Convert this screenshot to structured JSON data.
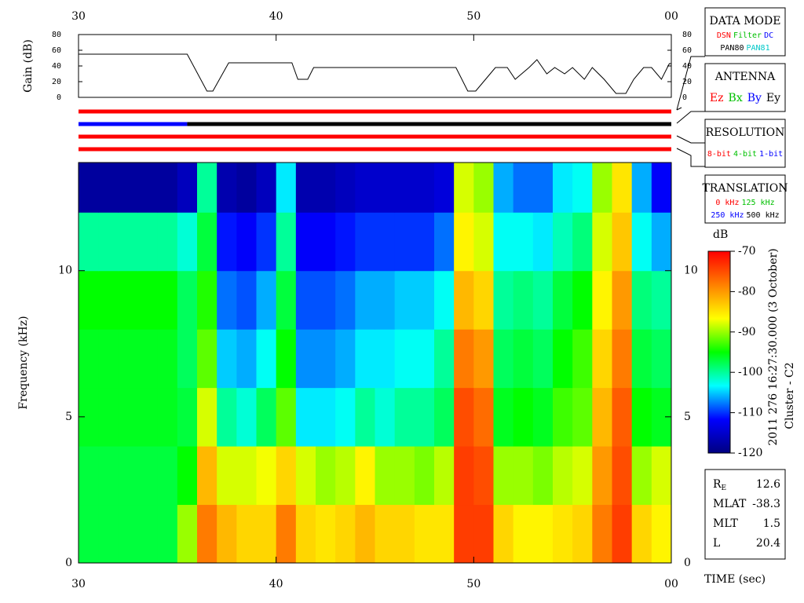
{
  "chart_data": {
    "type": "heatmap",
    "xlabel": "TIME (sec)",
    "ylabel": "Frequency (kHz)",
    "title_lines": [
      "2011 276 16:27:30.000 (3 October)",
      "Cluster - C2"
    ],
    "xlim": [
      30,
      60
    ],
    "xticks": [
      30,
      40,
      50,
      {
        "value": 60,
        "label": "00"
      }
    ],
    "ylim": [
      0,
      13.7
    ],
    "yticks": [
      0,
      5,
      10
    ],
    "x_edges": [
      30,
      31,
      32,
      33,
      34,
      35,
      36,
      37,
      38,
      39,
      40,
      41,
      42,
      43,
      44,
      45,
      46,
      47,
      48,
      49,
      50,
      51,
      52,
      53,
      54,
      55,
      56,
      57,
      58,
      59,
      60
    ],
    "y_edges": [
      0,
      2,
      4,
      6,
      8,
      10,
      12,
      13.7
    ],
    "z": [
      [
        -97,
        -97,
        -97,
        -97,
        -97,
        -90,
        -78,
        -82,
        -84,
        -84,
        -78,
        -84,
        -85,
        -84,
        -82,
        -84,
        -84,
        -85,
        -85,
        -74,
        -74,
        -84,
        -86,
        -86,
        -85,
        -84,
        -78,
        -74,
        -84,
        -86
      ],
      [
        -97,
        -97,
        -97,
        -97,
        -97,
        -95,
        -82,
        -88,
        -88,
        -87,
        -84,
        -88,
        -90,
        -89,
        -86,
        -90,
        -90,
        -91,
        -89,
        -74,
        -75,
        -90,
        -90,
        -91,
        -89,
        -88,
        -80,
        -75,
        -90,
        -88
      ],
      [
        -96,
        -96,
        -96,
        -96,
        -96,
        -97,
        -88,
        -100,
        -102,
        -98,
        -92,
        -104,
        -104,
        -103,
        -100,
        -102,
        -100,
        -100,
        -98,
        -75,
        -77,
        -96,
        -95,
        -96,
        -93,
        -92,
        -82,
        -76,
        -95,
        -96
      ],
      [
        -96,
        -96,
        -96,
        -96,
        -96,
        -98,
        -92,
        -105,
        -106,
        -103,
        -95,
        -107,
        -107,
        -106,
        -104,
        -104,
        -103,
        -103,
        -100,
        -78,
        -80,
        -98,
        -97,
        -98,
        -95,
        -93,
        -84,
        -78,
        -97,
        -98
      ],
      [
        -95,
        -95,
        -95,
        -95,
        -95,
        -98,
        -94,
        -108,
        -109,
        -106,
        -97,
        -109,
        -109,
        -108,
        -106,
        -106,
        -105,
        -105,
        -103,
        -82,
        -84,
        -100,
        -99,
        -100,
        -97,
        -95,
        -86,
        -80,
        -99,
        -100
      ],
      [
        -100,
        -100,
        -100,
        -100,
        -100,
        -102,
        -97,
        -111,
        -112,
        -110,
        -100,
        -112,
        -112,
        -111,
        -110,
        -110,
        -110,
        -110,
        -108,
        -86,
        -88,
        -103,
        -103,
        -104,
        -101,
        -99,
        -88,
        -83,
        -103,
        -106
      ],
      [
        -118,
        -118,
        -118,
        -118,
        -118,
        -116,
        -100,
        -117,
        -118,
        -116,
        -104,
        -117,
        -117,
        -116,
        -115,
        -115,
        -115,
        -115,
        -114,
        -88,
        -90,
        -106,
        -108,
        -108,
        -104,
        -103,
        -90,
        -85,
        -106,
        -112
      ]
    ],
    "zlabel": "dB",
    "zlim": [
      -120,
      -70
    ],
    "zticks": [
      -70,
      -80,
      -90,
      -100,
      -110,
      -120
    ],
    "colormap": [
      "#000080",
      "#0000ff",
      "#00ffff",
      "#00ff00",
      "#ffff00",
      "#ff8000",
      "#ff0000"
    ],
    "gain": {
      "ylabel": "Gain (dB)",
      "ylim": [
        0,
        80
      ],
      "yticks": [
        0,
        20,
        40,
        60,
        80
      ],
      "color": "#000000",
      "x": [
        30,
        35.5,
        36.5,
        36.8,
        37.6,
        40.8,
        41.1,
        41.6,
        41.9,
        49.1,
        49.7,
        50.1,
        50.6,
        51.1,
        51.7,
        52.1,
        52.8,
        53.2,
        53.7,
        54.1,
        54.6,
        55.0,
        55.6,
        56.0,
        56.6,
        57.2,
        57.7,
        58.1,
        58.6,
        59.0,
        59.5,
        59.9,
        60
      ],
      "values": [
        55,
        55,
        8,
        8,
        44,
        44,
        23,
        23,
        38,
        38,
        8,
        8,
        23,
        38,
        38,
        23,
        38,
        48,
        30,
        38,
        30,
        38,
        23,
        38,
        23,
        5,
        5,
        23,
        38,
        38,
        23,
        43,
        43
      ]
    },
    "mode_bars": [
      [
        {
          "from": 30,
          "to": 60,
          "color": "#ff0000"
        }
      ],
      [
        {
          "from": 30,
          "to": 35.5,
          "color": "#0000ff"
        },
        {
          "from": 35.5,
          "to": 60,
          "color": "#000000"
        }
      ],
      [
        {
          "from": 30,
          "to": 60,
          "color": "#ff0000"
        }
      ],
      [
        {
          "from": 30,
          "to": 60,
          "color": "#ff0000"
        }
      ]
    ]
  },
  "panels": [
    {
      "title": "DATA MODE",
      "lines": [
        [
          {
            "text": "DSN",
            "color": "#ff0000"
          },
          {
            "text": "Filter",
            "color": "#00c000"
          },
          {
            "text": "DC",
            "color": "#0000ff"
          }
        ],
        [
          {
            "text": "PAN80",
            "color": "#000000"
          },
          {
            "text": "PAN81",
            "color": "#00c8c8"
          }
        ]
      ]
    },
    {
      "title": "ANTENNA",
      "lines": [
        [
          {
            "text": "Ez",
            "color": "#ff0000"
          },
          {
            "text": "Bx",
            "color": "#00c000"
          },
          {
            "text": "By",
            "color": "#0000ff"
          },
          {
            "text": "Ey",
            "color": "#000000"
          }
        ]
      ]
    },
    {
      "title": "RESOLUTION",
      "lines": [
        [
          {
            "text": "8-bit",
            "color": "#ff0000"
          },
          {
            "text": "4-bit",
            "color": "#00c000"
          },
          {
            "text": "1-bit",
            "color": "#0000ff"
          }
        ]
      ]
    },
    {
      "title": "TRANSLATION",
      "lines": [
        [
          {
            "text": "0 kHz",
            "color": "#ff0000"
          },
          {
            "text": "125 kHz",
            "color": "#00c000"
          }
        ],
        [
          {
            "text": "250 kHz",
            "color": "#0000ff"
          },
          {
            "text": "500 kHz",
            "color": "#000000"
          }
        ]
      ]
    }
  ],
  "ephemeris": [
    {
      "label": "R",
      "subscript": "E",
      "value": 12.6
    },
    {
      "label": "MLAT",
      "value": -38.3
    },
    {
      "label": "MLT",
      "value": 1.5
    },
    {
      "label": "L",
      "value": 20.4
    }
  ]
}
